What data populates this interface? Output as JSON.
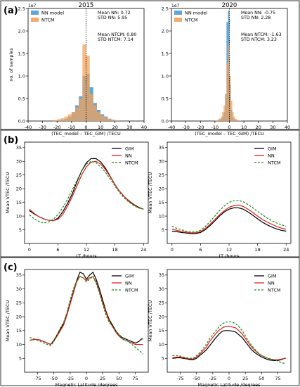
{
  "panel_labels": [
    "(a)",
    "(b)",
    "(c)"
  ],
  "colors": {
    "nn_hist": "#4a9fd4",
    "ntcm_hist": "#f5a25a",
    "gim": "#000000",
    "nn": "#e0201c",
    "ntcm": "#1a8a1a",
    "panel_border": "#333333"
  },
  "chart_data": [
    {
      "id": "hist2015",
      "type": "bar",
      "title": "2015",
      "xlabel": "(TEC_model – TEC_GIM) /TECU",
      "ylabel": "no. of samples",
      "scale_label": "1e7",
      "xlim": [
        -40,
        40
      ],
      "ylim": [
        0,
        2.5
      ],
      "xticks": [
        -40,
        -30,
        -20,
        -10,
        0,
        10,
        20,
        30,
        40
      ],
      "yticks": [
        0.0,
        0.5,
        1.0,
        1.5,
        2.0,
        2.5
      ],
      "ytick_labels": [
        "0.0",
        "0.5",
        "1.0",
        "1.5",
        "2.0",
        "2.5"
      ],
      "bin_width": 2.5,
      "bin_starts": [
        -22.5,
        -20,
        -17.5,
        -15,
        -12.5,
        -10,
        -7.5,
        -5,
        -2.5,
        0,
        2.5,
        5,
        7.5,
        10,
        12.5,
        15,
        17.5,
        20
      ],
      "series": [
        {
          "name": "NN model",
          "values": [
            0.01,
            0.02,
            0.03,
            0.05,
            0.1,
            0.2,
            0.35,
            0.55,
            1.0,
            1.05,
            0.75,
            0.4,
            0.25,
            0.15,
            0.1,
            0.05,
            0.03,
            0.01
          ]
        },
        {
          "name": "NTCM",
          "values": [
            0.02,
            0.04,
            0.06,
            0.1,
            0.15,
            0.2,
            0.3,
            0.5,
            1.7,
            1.45,
            0.6,
            0.35,
            0.2,
            0.12,
            0.08,
            0.05,
            0.03,
            0.02
          ]
        }
      ],
      "stats": [
        "Mean NN: 0.72",
        "STD NN: 5.95",
        "Mean NTCM: 0.80",
        "STD NTCM: 7.14"
      ]
    },
    {
      "id": "hist2020",
      "type": "bar",
      "title": "2020",
      "xlabel": "(TEC_model – TEC_GIM) /TECU",
      "ylabel": "",
      "scale_label": "1e7",
      "xlim": [
        -40,
        40
      ],
      "ylim": [
        0,
        2.5
      ],
      "xticks": [
        -40,
        -30,
        -20,
        -10,
        0,
        10,
        20,
        30,
        40
      ],
      "yticks": [
        0.0,
        0.5,
        1.0,
        1.5,
        2.0,
        2.5
      ],
      "ytick_labels": [
        "0.0",
        "0.5",
        "1.0",
        "1.5",
        "2.0",
        "2.5"
      ],
      "bin_width": 1,
      "bin_starts": [
        -10,
        -9,
        -8,
        -7,
        -6,
        -5,
        -4,
        -3,
        -2,
        -1,
        0,
        1,
        2,
        3,
        4,
        5,
        6,
        7
      ],
      "series": [
        {
          "name": "NN model",
          "values": [
            0.0,
            0.01,
            0.02,
            0.03,
            0.05,
            0.1,
            0.2,
            0.6,
            2.2,
            2.45,
            0.8,
            0.25,
            0.08,
            0.03,
            0.02,
            0.01,
            0.0,
            0.0
          ]
        },
        {
          "name": "NTCM",
          "values": [
            0.01,
            0.02,
            0.04,
            0.06,
            0.1,
            0.2,
            0.35,
            0.6,
            1.3,
            1.7,
            1.0,
            0.45,
            0.2,
            0.1,
            0.05,
            0.03,
            0.02,
            0.01
          ]
        }
      ],
      "stats": [
        "Mean NN: -0.75",
        "STD NN: 2.28",
        "Mean NTCM: -1.63",
        "STD NTCM: 3.23"
      ]
    },
    {
      "id": "lt2015",
      "type": "line",
      "xlabel": "LT /hours",
      "ylabel": "Mean VTEC /TECU",
      "xlim": [
        -1,
        25
      ],
      "ylim": [
        0,
        37
      ],
      "xticks": [
        0,
        6,
        12,
        18,
        24
      ],
      "yticks": [
        5,
        10,
        15,
        20,
        25,
        30,
        35
      ],
      "x": [
        0,
        1,
        2,
        3,
        4,
        5,
        6,
        7,
        8,
        9,
        10,
        11,
        12,
        13,
        14,
        15,
        16,
        17,
        18,
        19,
        20,
        21,
        22,
        23,
        24
      ],
      "series": [
        {
          "name": "GIM",
          "values": [
            12.0,
            10.8,
            9.8,
            9.0,
            8.5,
            8.3,
            9.2,
            11.5,
            14.5,
            18.0,
            22.5,
            26.5,
            29.5,
            31.0,
            31.0,
            29.8,
            27.5,
            24.5,
            21.5,
            19.0,
            17.0,
            15.5,
            14.2,
            13.2,
            12.5
          ]
        },
        {
          "name": "NN",
          "values": [
            12.5,
            11.0,
            9.8,
            9.0,
            8.5,
            8.3,
            8.8,
            10.5,
            13.5,
            17.0,
            21.0,
            25.0,
            28.0,
            29.7,
            30.0,
            29.0,
            27.0,
            24.3,
            21.5,
            19.0,
            17.0,
            15.3,
            14.0,
            13.0,
            12.5
          ]
        },
        {
          "name": "NTCM",
          "values": [
            10.5,
            9.0,
            8.0,
            7.5,
            7.8,
            8.8,
            10.5,
            13.0,
            16.0,
            19.5,
            23.0,
            26.5,
            29.0,
            30.0,
            29.5,
            28.0,
            26.0,
            23.5,
            21.0,
            18.5,
            16.5,
            15.0,
            13.8,
            13.0,
            12.5
          ]
        }
      ]
    },
    {
      "id": "lt2020",
      "type": "line",
      "xlabel": "LT /hours",
      "ylabel": "Mean VTEC /TECU",
      "xlim": [
        -1,
        25
      ],
      "ylim": [
        0,
        37
      ],
      "xticks": [
        0,
        6,
        12,
        18,
        24
      ],
      "yticks": [
        5,
        10,
        15,
        20,
        25,
        30,
        35
      ],
      "x": [
        0,
        1,
        2,
        3,
        4,
        5,
        6,
        7,
        8,
        9,
        10,
        11,
        12,
        13,
        14,
        15,
        16,
        17,
        18,
        19,
        20,
        21,
        22,
        23,
        24
      ],
      "series": [
        {
          "name": "GIM",
          "values": [
            4.5,
            4.3,
            4.0,
            3.8,
            3.6,
            3.6,
            4.0,
            5.0,
            6.5,
            8.2,
            10.0,
            11.5,
            12.5,
            13.0,
            13.0,
            12.5,
            11.5,
            10.3,
            9.0,
            7.8,
            6.8,
            6.0,
            5.3,
            4.8,
            4.5
          ]
        },
        {
          "name": "NN",
          "values": [
            5.2,
            4.8,
            4.4,
            4.1,
            3.9,
            3.9,
            4.3,
            5.5,
            7.0,
            8.8,
            10.5,
            12.0,
            13.2,
            13.8,
            14.0,
            13.5,
            12.5,
            11.3,
            10.0,
            8.8,
            7.8,
            7.0,
            6.2,
            5.6,
            5.2
          ]
        },
        {
          "name": "NTCM",
          "values": [
            6.3,
            5.5,
            5.0,
            4.5,
            4.2,
            4.2,
            4.8,
            6.2,
            8.0,
            10.0,
            12.0,
            13.7,
            15.0,
            15.6,
            15.7,
            15.2,
            14.2,
            13.0,
            11.7,
            10.5,
            9.3,
            8.3,
            7.5,
            6.8,
            6.3
          ]
        }
      ]
    },
    {
      "id": "lat2015",
      "type": "line",
      "xlabel": "Magnetic Latitude /degrees",
      "ylabel": "Mean VTEC /TECU",
      "xlim": [
        -95,
        95
      ],
      "ylim": [
        0,
        37
      ],
      "xticks": [
        -75,
        -50,
        -25,
        0,
        25,
        50,
        75
      ],
      "yticks": [
        5,
        10,
        15,
        20,
        25,
        30,
        35
      ],
      "x": [
        -87,
        -80,
        -75,
        -70,
        -65,
        -60,
        -55,
        -50,
        -45,
        -40,
        -35,
        -30,
        -25,
        -20,
        -15,
        -10,
        -5,
        0,
        5,
        10,
        15,
        20,
        25,
        30,
        35,
        40,
        45,
        50,
        55,
        60,
        65,
        70,
        75,
        80,
        85,
        87
      ],
      "series": [
        {
          "name": "GIM",
          "values": [
            11.5,
            11.8,
            11.8,
            11.5,
            11.0,
            10.5,
            10.0,
            11.5,
            13.5,
            15.5,
            17.5,
            21.0,
            25.0,
            29.0,
            33.0,
            36.0,
            35.5,
            33.5,
            35.0,
            36.0,
            33.5,
            30.0,
            26.0,
            22.0,
            19.0,
            17.0,
            15.0,
            13.5,
            12.5,
            12.0,
            11.5,
            11.0,
            10.5,
            11.0,
            12.0,
            12.0
          ]
        },
        {
          "name": "NN",
          "values": [
            11.5,
            11.8,
            11.8,
            11.5,
            11.0,
            10.5,
            10.0,
            11.2,
            13.0,
            15.0,
            17.0,
            20.5,
            24.5,
            28.5,
            32.5,
            34.5,
            34.0,
            33.0,
            34.0,
            34.5,
            32.5,
            29.0,
            25.0,
            21.5,
            18.5,
            16.5,
            14.5,
            13.0,
            12.0,
            11.5,
            11.0,
            10.5,
            10.0,
            10.0,
            10.0,
            10.0
          ]
        },
        {
          "name": "NTCM",
          "values": [
            12.5,
            12.0,
            11.5,
            11.0,
            10.5,
            10.0,
            9.5,
            11.0,
            13.5,
            16.0,
            18.0,
            21.5,
            26.0,
            30.0,
            33.0,
            34.5,
            34.0,
            32.5,
            33.5,
            34.5,
            32.0,
            28.5,
            24.5,
            20.5,
            18.0,
            16.5,
            15.0,
            13.5,
            12.0,
            11.5,
            11.0,
            10.0,
            9.0,
            8.0,
            7.0,
            6.5
          ]
        }
      ]
    },
    {
      "id": "lat2020",
      "type": "line",
      "xlabel": "Magnetic Latitude /degrees",
      "ylabel": "Mean VTEC /TECU",
      "xlim": [
        -95,
        95
      ],
      "ylim": [
        0,
        37
      ],
      "xticks": [
        -75,
        -50,
        -25,
        0,
        25,
        50,
        75
      ],
      "yticks": [
        5,
        10,
        15,
        20,
        25,
        30,
        35
      ],
      "x": [
        -87,
        -80,
        -75,
        -70,
        -65,
        -60,
        -55,
        -50,
        -45,
        -40,
        -35,
        -30,
        -25,
        -20,
        -15,
        -10,
        -5,
        0,
        5,
        10,
        15,
        20,
        25,
        30,
        35,
        40,
        45,
        50,
        55,
        60,
        65,
        70,
        75,
        80,
        85,
        87
      ],
      "series": [
        {
          "name": "GIM",
          "values": [
            5.0,
            5.2,
            5.2,
            5.0,
            4.8,
            4.5,
            4.5,
            5.0,
            6.0,
            7.0,
            8.0,
            9.5,
            11.0,
            12.5,
            13.8,
            14.8,
            15.0,
            15.0,
            14.8,
            14.5,
            13.5,
            12.5,
            11.0,
            9.5,
            8.0,
            7.0,
            6.2,
            5.5,
            5.0,
            4.5,
            4.3,
            4.2,
            4.2,
            4.5,
            5.0,
            5.0
          ]
        },
        {
          "name": "NN",
          "values": [
            5.2,
            5.5,
            5.5,
            5.2,
            5.0,
            4.8,
            4.8,
            5.5,
            6.5,
            7.8,
            9.0,
            11.0,
            12.5,
            14.0,
            15.2,
            16.0,
            16.5,
            16.5,
            16.3,
            16.0,
            15.0,
            13.8,
            12.2,
            10.5,
            9.0,
            7.8,
            6.8,
            6.0,
            5.5,
            5.0,
            4.7,
            4.5,
            4.5,
            4.7,
            5.0,
            5.0
          ]
        },
        {
          "name": "NTCM",
          "values": [
            6.0,
            6.0,
            5.8,
            5.5,
            5.2,
            5.0,
            5.0,
            6.0,
            7.0,
            8.5,
            10.0,
            12.0,
            13.5,
            15.0,
            16.5,
            17.5,
            18.0,
            18.2,
            18.0,
            17.5,
            16.5,
            15.0,
            13.2,
            11.2,
            9.5,
            8.2,
            7.0,
            6.0,
            5.5,
            5.0,
            4.7,
            4.4,
            4.0,
            3.5,
            3.2,
            3.0
          ]
        }
      ]
    }
  ]
}
